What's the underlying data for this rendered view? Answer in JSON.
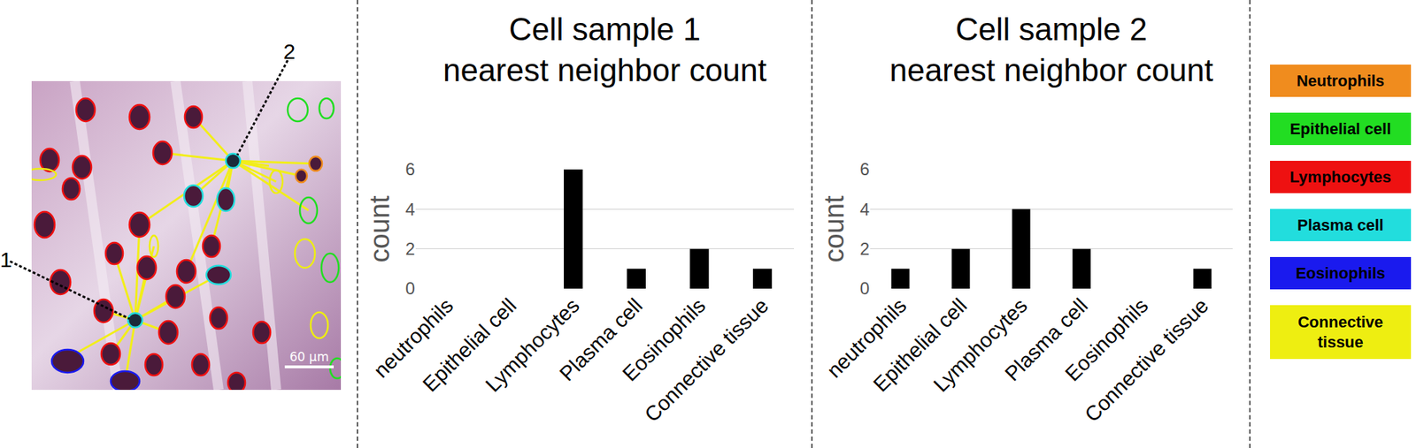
{
  "image": {
    "sample_labels": [
      "1",
      "2"
    ],
    "scale_bar": "60 μm"
  },
  "chart_data": [
    {
      "type": "bar",
      "title": "Cell sample 1\nnearest neighbor count",
      "y_label": "count",
      "categories": [
        "neutrophils",
        "Epithelial cell",
        "Lymphocytes",
        "Plasma cell",
        "Eosinophils",
        "Connective tissue"
      ],
      "values": [
        0,
        0,
        6,
        1,
        2,
        1
      ],
      "color": "#000000",
      "ylim": [
        0,
        6
      ],
      "yticks": [
        0,
        2,
        4,
        6
      ],
      "grid": true
    },
    {
      "type": "bar",
      "title": "Cell sample 2\nnearest neighbor count",
      "y_label": "count",
      "categories": [
        "neutrophils",
        "Epithelial cell",
        "Lymphocytes",
        "Plasma cell",
        "Eosinophils",
        "Connective tissue"
      ],
      "values": [
        1,
        2,
        4,
        2,
        0,
        1
      ],
      "color": "#000000",
      "ylim": [
        0,
        6
      ],
      "yticks": [
        0,
        2,
        4,
        6
      ],
      "grid": true
    }
  ],
  "key": {
    "items": [
      {
        "label": "Neutrophils",
        "color": "#f08c1e"
      },
      {
        "label": "Epithelial cell",
        "color": "#22dd22"
      },
      {
        "label": "Lymphocytes",
        "color": "#ee1111"
      },
      {
        "label": "Plasma cell",
        "color": "#22dddd"
      },
      {
        "label": "Eosinophils",
        "color": "#1a1aee"
      },
      {
        "label": "Connective tissue",
        "color": "#eeee11"
      }
    ]
  }
}
